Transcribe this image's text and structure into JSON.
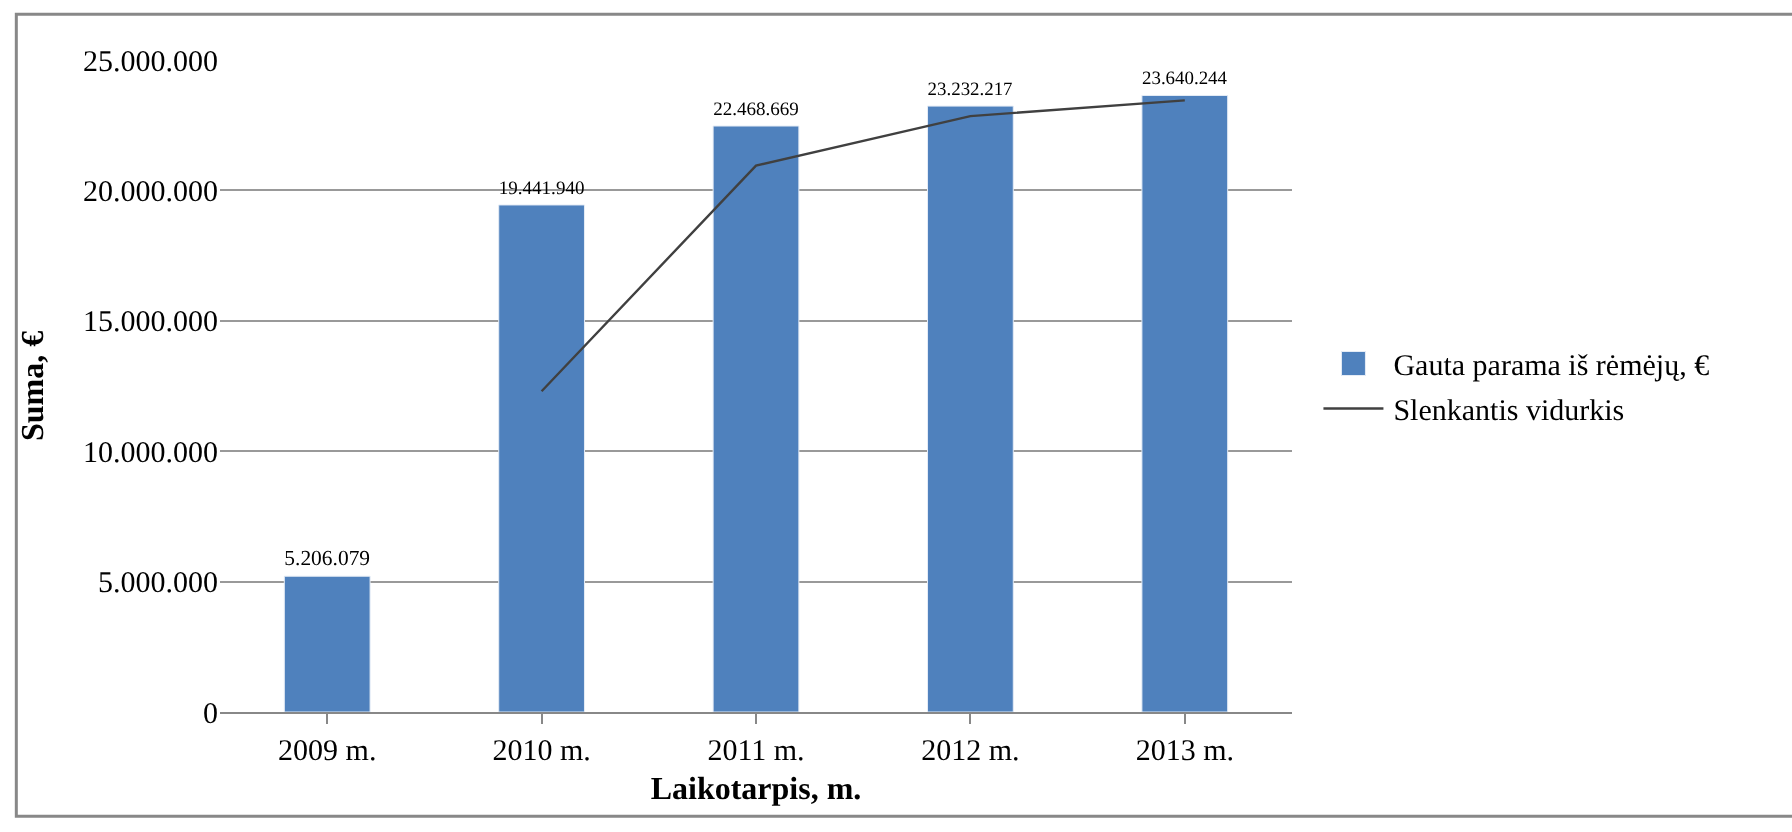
{
  "chart_data": {
    "type": "bar",
    "xlabel": "Laikotarpis, m.",
    "ylabel": "Suma, €",
    "categories": [
      "2009 m.",
      "2010 m.",
      "2011 m.",
      "2012 m.",
      "2013 m."
    ],
    "series": [
      {
        "name": "Gauta parama iš rėmėjų, €",
        "color": "#4f81bd",
        "values": [
          5206079,
          19441940,
          22468669,
          23232217,
          23640244
        ],
        "value_labels": [
          "5.206.079",
          "19.441.940",
          "22.468.669",
          "23.232.217",
          "23.640.244"
        ]
      },
      {
        "name": "Slenkantis vidurkis",
        "type": "line",
        "color": "#404040",
        "marker": "none",
        "values": [
          null,
          12300000,
          20950000,
          22850000,
          23450000
        ]
      }
    ],
    "ylim": [
      0,
      25000000
    ],
    "yticks": [
      {
        "value": 0,
        "label": "0"
      },
      {
        "value": 5000000,
        "label": "5.000.000"
      },
      {
        "value": 10000000,
        "label": "10.000.000"
      },
      {
        "value": 15000000,
        "label": "15.000.000"
      },
      {
        "value": 20000000,
        "label": "20.000.000"
      },
      {
        "value": 25000000,
        "label": "25.000.000"
      }
    ],
    "grid": "y",
    "legend": "right"
  }
}
